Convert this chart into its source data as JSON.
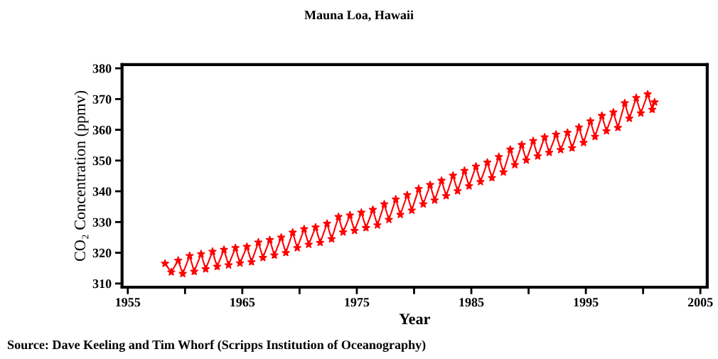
{
  "chart_data": {
    "type": "line",
    "title": "Mauna Loa, Hawaii",
    "xlabel": "Year",
    "ylabel": "CO₂ Concentration (ppmv)",
    "annotations": [
      "Source: Dave Keeling and Tim Whorf (Scripps Institution of Oceanography)"
    ],
    "series": [
      {
        "color": "#ff0000",
        "x": [
          1958.25,
          1958.8,
          1959.4,
          1959.8,
          1960.4,
          1960.8,
          1961.4,
          1961.8,
          1962.4,
          1962.8,
          1963.4,
          1963.8,
          1964.4,
          1964.8,
          1965.4,
          1965.8,
          1966.4,
          1966.8,
          1967.4,
          1967.8,
          1968.4,
          1968.8,
          1969.4,
          1969.8,
          1970.4,
          1970.8,
          1971.4,
          1971.8,
          1972.4,
          1972.8,
          1973.4,
          1973.8,
          1974.4,
          1974.8,
          1975.4,
          1975.8,
          1976.4,
          1976.8,
          1977.4,
          1977.8,
          1978.4,
          1978.8,
          1979.4,
          1979.8,
          1980.4,
          1980.8,
          1981.4,
          1981.8,
          1982.4,
          1982.8,
          1983.4,
          1983.8,
          1984.4,
          1984.8,
          1985.4,
          1985.8,
          1986.4,
          1986.8,
          1987.4,
          1987.8,
          1988.4,
          1988.8,
          1989.4,
          1989.8,
          1990.4,
          1990.8,
          1991.4,
          1991.8,
          1992.4,
          1992.8,
          1993.4,
          1993.8,
          1994.4,
          1994.8,
          1995.4,
          1995.8,
          1996.4,
          1996.8,
          1997.4,
          1997.8,
          1998.4,
          1998.8,
          1999.4,
          1999.8,
          2000.4,
          2000.8,
          2001.0
        ],
        "values": [
          316.5,
          313.7,
          317.5,
          313.2,
          319.0,
          313.9,
          319.6,
          314.7,
          320.4,
          315.5,
          321.0,
          316.0,
          321.6,
          316.6,
          322.0,
          317.0,
          323.4,
          318.4,
          324.2,
          319.2,
          325.0,
          320.0,
          326.6,
          321.6,
          327.7,
          322.7,
          328.3,
          323.3,
          329.5,
          324.5,
          331.7,
          326.7,
          332.2,
          327.2,
          333.1,
          328.1,
          334.0,
          329.0,
          335.8,
          330.8,
          337.4,
          332.4,
          338.8,
          333.8,
          340.8,
          335.8,
          342.1,
          337.1,
          343.5,
          338.5,
          345.1,
          340.1,
          346.7,
          341.7,
          348.1,
          343.1,
          349.4,
          344.4,
          351.2,
          346.2,
          353.6,
          348.6,
          355.1,
          350.1,
          356.4,
          351.4,
          357.6,
          352.6,
          358.5,
          353.5,
          359.1,
          354.1,
          360.8,
          355.8,
          362.8,
          357.8,
          364.6,
          359.6,
          365.7,
          360.7,
          368.7,
          363.7,
          370.4,
          365.4,
          371.6,
          366.6,
          369.0
        ]
      }
    ],
    "marker": "star",
    "line_style": "solid",
    "grid": false,
    "legend": false,
    "xlim": [
      1954.5,
      2005.6
    ],
    "ylim": [
      308.8,
      381.2
    ],
    "xticks": [
      1955,
      {
        "value": 1960,
        "label": null
      },
      1965,
      {
        "value": 1970,
        "label": null
      },
      1975,
      {
        "value": 1980,
        "label": null
      },
      1985,
      {
        "value": 1990,
        "label": null
      },
      1995,
      {
        "value": 2000,
        "label": null
      },
      2005
    ],
    "yticks": [
      310,
      320,
      330,
      340,
      350,
      360,
      370,
      380
    ]
  }
}
